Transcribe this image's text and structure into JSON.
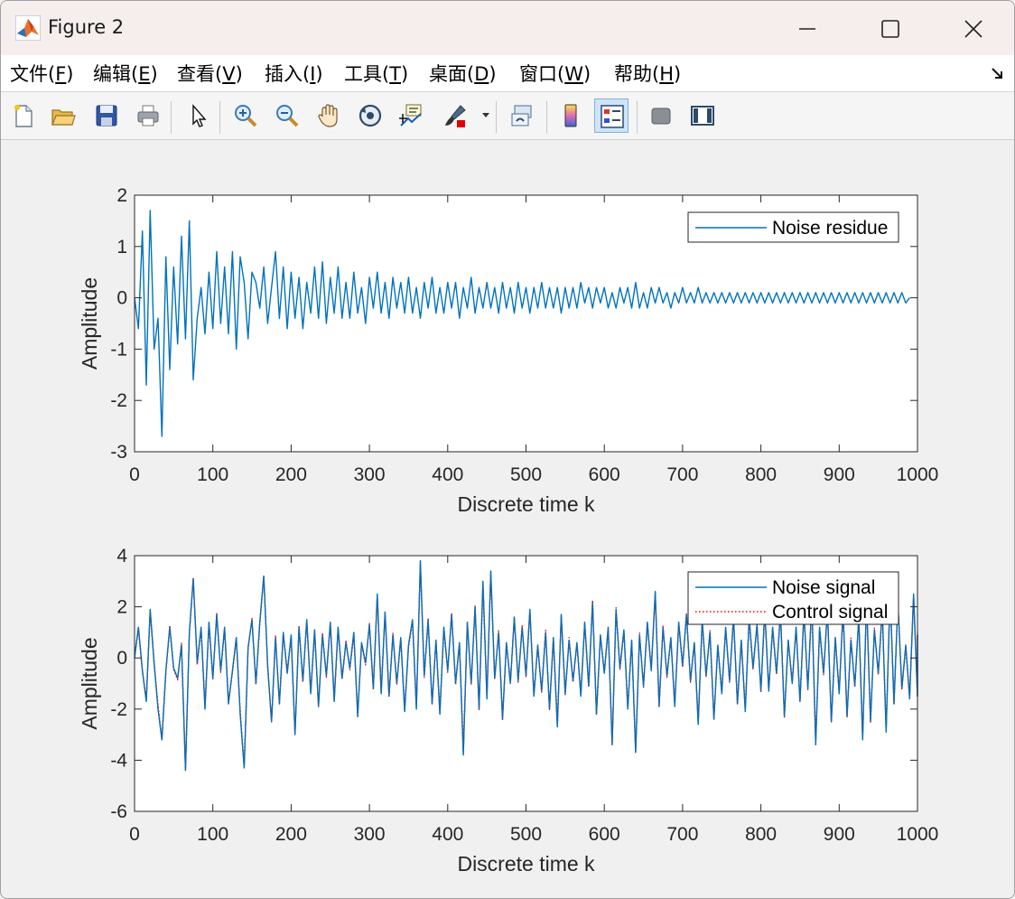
{
  "window": {
    "title": "Figure 2"
  },
  "menu": {
    "items": [
      {
        "label": "文件(F)",
        "text": "文件(",
        "key": "F"
      },
      {
        "label": "编辑(E)",
        "text": "编辑(",
        "key": "E"
      },
      {
        "label": "查看(V)",
        "text": "查看(",
        "key": "V"
      },
      {
        "label": "插入(I)",
        "text": "插入(",
        "key": "I"
      },
      {
        "label": "工具(T)",
        "text": "工具(",
        "key": "T"
      },
      {
        "label": "桌面(D)",
        "text": "桌面(",
        "key": "D"
      },
      {
        "label": "窗口(W)",
        "text": "窗口(",
        "key": "W"
      },
      {
        "label": "帮助(H)",
        "text": "帮助(",
        "key": "H"
      }
    ]
  },
  "toolbar": {
    "buttons": [
      {
        "icon": "new-figure-icon"
      },
      {
        "icon": "open-file-icon"
      },
      {
        "icon": "save-icon"
      },
      {
        "icon": "print-icon"
      },
      {
        "icon": "edit-plot-arrow-icon"
      },
      {
        "icon": "zoom-in-icon"
      },
      {
        "icon": "zoom-out-icon"
      },
      {
        "icon": "pan-hand-icon"
      },
      {
        "icon": "rotate-3d-icon"
      },
      {
        "icon": "data-cursor-icon"
      },
      {
        "icon": "brush-icon"
      },
      {
        "icon": "link-plot-icon"
      },
      {
        "icon": "colorbar-icon"
      },
      {
        "icon": "legend-icon",
        "active": true
      },
      {
        "icon": "hide-plot-tools-icon"
      },
      {
        "icon": "show-plot-tools-icon"
      }
    ]
  },
  "colors": {
    "series_blue": "#0072bd",
    "series_red": "#ff0000",
    "axes_color": "#262626",
    "figure_bg": "#f0f0f0"
  },
  "chart_data": [
    {
      "type": "line",
      "xlabel": "Discrete time k",
      "ylabel": "Amplitude",
      "xlim": [
        0,
        1000
      ],
      "ylim": [
        -3,
        2
      ],
      "xticks": [
        0,
        100,
        200,
        300,
        400,
        500,
        600,
        700,
        800,
        900,
        1000
      ],
      "yticks": [
        -3,
        -2,
        -1,
        0,
        1,
        2
      ],
      "legend_position": "top-right",
      "series": [
        {
          "name": "Noise residue",
          "style": "solid",
          "color": "#0072bd",
          "x_step": 5,
          "y": [
            0,
            -0.6,
            1.3,
            -1.7,
            1.7,
            -1.0,
            -0.4,
            -2.7,
            0.8,
            -1.4,
            0.6,
            -0.9,
            1.2,
            -0.8,
            1.5,
            -1.6,
            -0.4,
            0.2,
            -0.7,
            0.5,
            -0.6,
            0.9,
            -0.5,
            0.6,
            -0.7,
            0.9,
            -1.0,
            0.8,
            0.3,
            -0.8,
            0.5,
            0.3,
            -0.2,
            0.6,
            -0.5,
            0.2,
            0.9,
            -0.4,
            0.6,
            -0.6,
            0.5,
            -0.4,
            0.4,
            -0.6,
            0.3,
            -0.3,
            0.6,
            -0.4,
            0.7,
            -0.5,
            0.4,
            -0.3,
            0.6,
            -0.4,
            0.3,
            -0.4,
            0.5,
            -0.3,
            0.2,
            -0.5,
            0.4,
            -0.2,
            0.5,
            -0.3,
            0.3,
            -0.4,
            0.4,
            -0.2,
            0.3,
            -0.3,
            0.4,
            -0.3,
            0.2,
            -0.4,
            0.3,
            -0.2,
            0.4,
            -0.3,
            0.2,
            -0.3,
            0.3,
            -0.2,
            0.3,
            -0.4,
            0.2,
            -0.2,
            0.4,
            -0.3,
            0.2,
            -0.2,
            0.3,
            -0.2,
            0.2,
            -0.3,
            0.3,
            -0.2,
            0.2,
            -0.3,
            0.3,
            -0.2,
            0.2,
            -0.3,
            0.2,
            -0.2,
            0.3,
            -0.2,
            0.2,
            -0.2,
            0.2,
            -0.3,
            0.2,
            -0.2,
            0.2,
            -0.2,
            0.3,
            -0.1,
            0.2,
            -0.2,
            0.2,
            -0.1,
            0.2,
            -0.2,
            0.1,
            -0.2,
            0.2,
            -0.1,
            0.2,
            -0.2,
            0.3,
            -0.2,
            0.1,
            -0.2,
            0.2,
            -0.1,
            0.2,
            -0.1,
            0.1,
            -0.2,
            0.1,
            -0.1,
            0.2,
            -0.1,
            0.1,
            -0.1,
            0.2,
            -0.1,
            0.1,
            -0.1,
            0.1,
            -0.1,
            0.1,
            -0.1,
            0.1,
            -0.1,
            0.1,
            -0.1,
            0.1,
            -0.1,
            0.1,
            -0.1,
            0.1,
            -0.1,
            0.1,
            -0.1,
            0.1,
            -0.1,
            0.1,
            -0.1,
            0.1,
            -0.1,
            0.1,
            -0.1,
            0.1,
            -0.1,
            0.1,
            -0.1,
            0.1,
            -0.1,
            0.1,
            -0.1,
            0.1,
            -0.1,
            0.1,
            -0.1,
            0.1,
            -0.1,
            0.1,
            -0.1,
            0.1,
            -0.1,
            0.1,
            -0.1,
            0.1,
            -0.1,
            0.1,
            -0.1,
            0.1,
            -0.1,
            0.0
          ]
        }
      ]
    },
    {
      "type": "line",
      "xlabel": "Discrete time k",
      "ylabel": "Amplitude",
      "xlim": [
        0,
        1000
      ],
      "ylim": [
        -6,
        4
      ],
      "xticks": [
        0,
        100,
        200,
        300,
        400,
        500,
        600,
        700,
        800,
        900,
        1000
      ],
      "yticks": [
        -6,
        -4,
        -2,
        0,
        2,
        4
      ],
      "legend_position": "top-right",
      "series": [
        {
          "name": "Noise signal",
          "style": "solid",
          "color": "#0072bd",
          "x_step": 5,
          "y": [
            0,
            1.2,
            -0.5,
            -1.7,
            1.9,
            -0.2,
            -2.0,
            -3.2,
            -0.5,
            1.2,
            -0.4,
            -0.8,
            0.5,
            -4.4,
            1.0,
            3.1,
            -0.2,
            1.2,
            -2.0,
            1.4,
            -0.8,
            1.7,
            -0.5,
            1.2,
            -1.8,
            -0.5,
            0.8,
            -2.2,
            -4.3,
            0.4,
            1.5,
            -1.0,
            1.4,
            3.2,
            -0.3,
            -2.5,
            0.8,
            -1.8,
            1.0,
            -0.6,
            0.9,
            -3.0,
            1.2,
            -0.9,
            1.5,
            -1.4,
            1.1,
            -1.9,
            0.9,
            -0.7,
            1.4,
            -1.7,
            1.2,
            -0.8,
            0.6,
            -0.4,
            1.0,
            -2.3,
            0.6,
            -0.2,
            1.3,
            -1.2,
            2.5,
            -1.4,
            1.8,
            -1.5,
            0.9,
            -1.0,
            0.8,
            -2.1,
            0.5,
            1.5,
            -2.0,
            3.8,
            -0.7,
            1.5,
            -1.8,
            0.7,
            -2.2,
            1.2,
            -0.5,
            1.7,
            -1.0,
            0.6,
            -3.8,
            1.4,
            -1.0,
            2.0,
            -2.0,
            3.0,
            -1.6,
            3.4,
            -0.8,
            1.0,
            -2.4,
            0.6,
            -1.0,
            1.6,
            -0.9,
            1.2,
            -0.7,
            1.9,
            -1.5,
            0.5,
            -1.3,
            1.0,
            -2.0,
            0.8,
            -2.7,
            1.7,
            -1.4,
            0.7,
            -0.9,
            0.6,
            -1.5,
            1.4,
            -1.1,
            2.2,
            -2.2,
            0.9,
            -0.6,
            1.2,
            -3.4,
            1.9,
            -0.4,
            1.1,
            -2.0,
            0.7,
            -3.7,
            0.9,
            -1.1,
            1.4,
            -0.5,
            2.6,
            -1.9,
            1.2,
            -0.7,
            0.8,
            -1.9,
            1.4,
            -0.3,
            1.7,
            -0.9,
            0.6,
            -2.6,
            1.5,
            -0.7,
            1.0,
            -2.4,
            0.5,
            -1.4,
            1.2,
            -0.9,
            1.6,
            -1.8,
            0.7,
            -2.1,
            1.6,
            -0.4,
            1.3,
            -1.3,
            1.9,
            -1.3,
            1.2,
            -0.6,
            1.8,
            -2.3,
            0.7,
            -1.0,
            1.2,
            -1.7,
            1.8,
            -1.2,
            2.2,
            -3.4,
            1.2,
            -0.6,
            1.9,
            -2.5,
            0.8,
            -1.4,
            1.9,
            -2.3,
            0.7,
            -1.1,
            1.6,
            -3.2,
            2.3,
            -2.5,
            1.1,
            -0.6,
            1.9,
            -2.9,
            2.6,
            -1.8,
            2.2,
            -1.2,
            0.5,
            -1.6,
            2.5,
            -1.5,
            0.9,
            -0.5
          ]
        },
        {
          "name": "Control signal",
          "style": "dotted",
          "color": "#ff0000",
          "offset_of": "Noise signal"
        }
      ]
    }
  ]
}
